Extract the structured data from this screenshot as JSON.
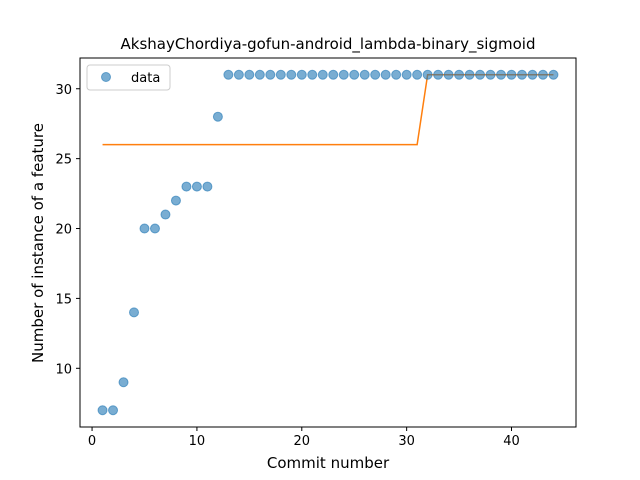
{
  "chart_data": {
    "type": "scatter",
    "title": "AkshayChordiya-gofun-android_lambda-binary_sigmoid",
    "xlabel": "Commit number",
    "ylabel": "Number of instance of a feature",
    "xlim": [
      -1.15,
      46.15
    ],
    "ylim": [
      5.8,
      32.2
    ],
    "xticks": [
      0,
      10,
      20,
      30,
      40
    ],
    "yticks": [
      10,
      15,
      20,
      25,
      30
    ],
    "grid": false,
    "legend_position": "top-left",
    "series": [
      {
        "name": "data",
        "kind": "scatter",
        "color": "#1f77b4",
        "x": [
          1,
          2,
          3,
          4,
          5,
          6,
          7,
          8,
          9,
          10,
          11,
          12,
          13,
          14,
          15,
          16,
          17,
          18,
          19,
          20,
          21,
          22,
          23,
          24,
          25,
          26,
          27,
          28,
          29,
          30,
          31,
          32,
          33,
          34,
          35,
          36,
          37,
          38,
          39,
          40,
          41,
          42,
          43,
          44
        ],
        "y": [
          7,
          7,
          9,
          14,
          20,
          20,
          21,
          22,
          23,
          23,
          23,
          28,
          31,
          31,
          31,
          31,
          31,
          31,
          31,
          31,
          31,
          31,
          31,
          31,
          31,
          31,
          31,
          31,
          31,
          31,
          31,
          31,
          31,
          31,
          31,
          31,
          31,
          31,
          31,
          31,
          31,
          31,
          31,
          31
        ]
      },
      {
        "kind": "line",
        "color": "#ff7f0e",
        "x": [
          1,
          31,
          32,
          44
        ],
        "y": [
          26,
          26,
          31,
          31
        ]
      }
    ]
  }
}
